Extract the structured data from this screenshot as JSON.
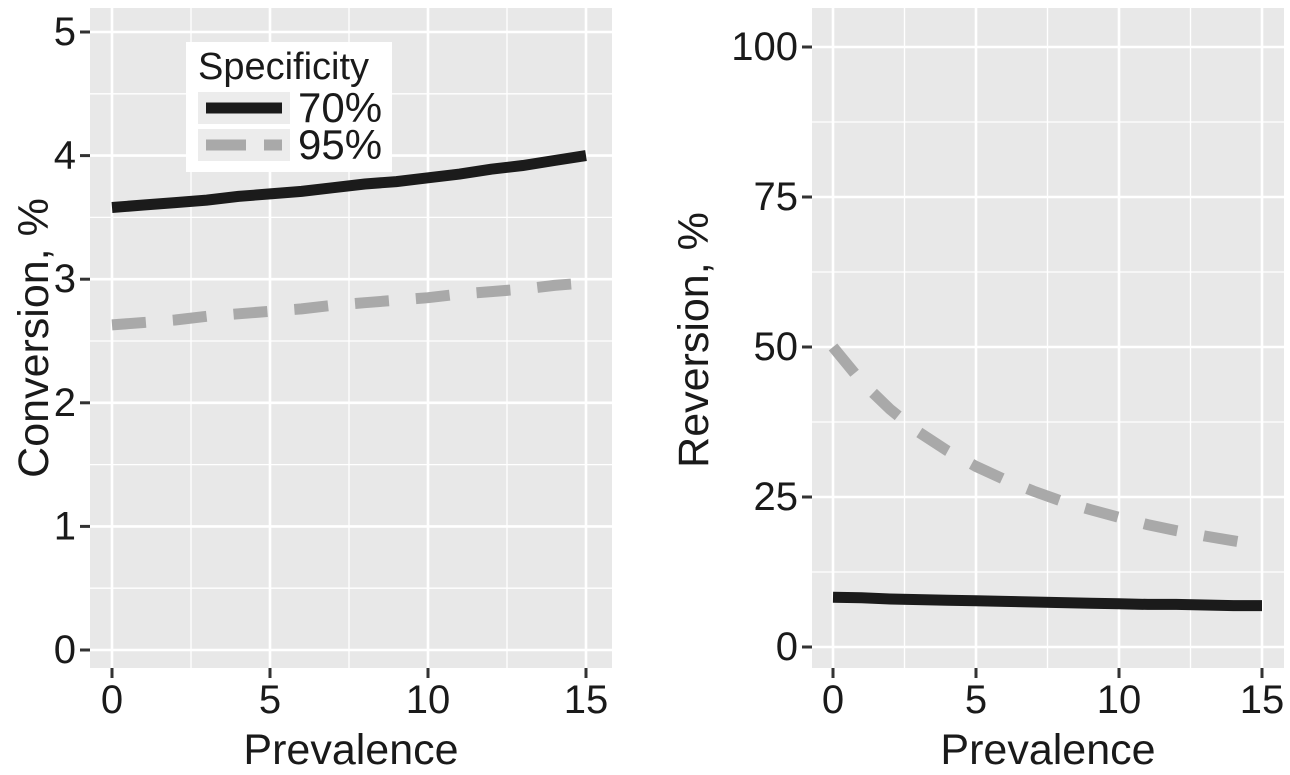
{
  "colors": {
    "figure_bg": "#ffffff",
    "panel_bg": "#e8e8e8",
    "grid_major": "#ffffff",
    "grid_minor": "#ffffff",
    "tick_mark": "#333333",
    "text": "#1a1a1a",
    "line_solid": "#1b1b1b",
    "line_dashed": "#a9a9a9",
    "legend_bg": "#ffffff",
    "legend_key_bg": "#ececec"
  },
  "legend": {
    "title": "Specificity",
    "entries": [
      {
        "label": "70%",
        "color": "#1b1b1b",
        "dash": "solid"
      },
      {
        "label": "95%",
        "color": "#a9a9a9",
        "dash": "dashed"
      }
    ],
    "position": "inside-top-left-of-left-panel"
  },
  "chart_data": [
    {
      "type": "line",
      "title": "",
      "xlabel": "Prevalence",
      "ylabel": "Conversion, %",
      "xlim": [
        0,
        15
      ],
      "ylim": [
        0,
        5
      ],
      "xticks": [
        0,
        5,
        10,
        15
      ],
      "yticks": [
        0,
        1,
        2,
        3,
        4,
        5
      ],
      "grid": true,
      "x": [
        0,
        1,
        2,
        3,
        4,
        5,
        6,
        7,
        8,
        9,
        10,
        11,
        12,
        13,
        14,
        15
      ],
      "series": [
        {
          "name": "70%",
          "color": "#1b1b1b",
          "dash": "solid",
          "values": [
            3.58,
            3.6,
            3.62,
            3.64,
            3.67,
            3.69,
            3.71,
            3.74,
            3.77,
            3.79,
            3.82,
            3.85,
            3.89,
            3.92,
            3.96,
            4.0
          ]
        },
        {
          "name": "95%",
          "color": "#a9a9a9",
          "dash": "dashed",
          "values": [
            2.63,
            2.65,
            2.67,
            2.7,
            2.72,
            2.74,
            2.76,
            2.79,
            2.81,
            2.83,
            2.85,
            2.88,
            2.9,
            2.92,
            2.95,
            2.97
          ]
        }
      ]
    },
    {
      "type": "line",
      "title": "",
      "xlabel": "Prevalence",
      "ylabel": "Reversion, %",
      "xlim": [
        0,
        15
      ],
      "ylim": [
        0,
        100
      ],
      "xticks": [
        0,
        5,
        10,
        15
      ],
      "yticks": [
        0,
        25,
        50,
        75,
        100
      ],
      "grid": true,
      "x": [
        0,
        1,
        2,
        3,
        4,
        5,
        6,
        7,
        8,
        9,
        10,
        11,
        12,
        13,
        14,
        15
      ],
      "series": [
        {
          "name": "70%",
          "color": "#1b1b1b",
          "dash": "solid",
          "values": [
            8.3,
            8.2,
            8.0,
            7.9,
            7.8,
            7.7,
            7.6,
            7.5,
            7.4,
            7.3,
            7.2,
            7.1,
            7.1,
            7.0,
            6.9,
            6.9
          ]
        },
        {
          "name": "95%",
          "color": "#a9a9a9",
          "dash": "dashed",
          "values": [
            50.0,
            44.2,
            39.6,
            35.8,
            32.7,
            30.1,
            27.9,
            26.0,
            24.3,
            22.9,
            21.6,
            20.4,
            19.4,
            18.5,
            17.7,
            16.9
          ]
        }
      ]
    }
  ]
}
